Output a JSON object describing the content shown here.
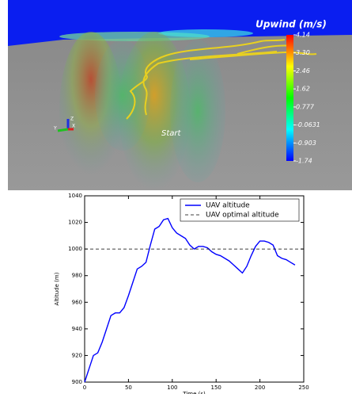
{
  "chart_data": [
    {
      "type": "scene",
      "title": "Upwind (m/s)",
      "annotation": "Start",
      "axis_labels": [
        "Z",
        "Y",
        "X"
      ],
      "colorbar": {
        "lim": [
          -1.74,
          4.14
        ],
        "colors": [
          "#0000ff",
          "#00ffff",
          "#00ff00",
          "#ffff00",
          "#ff0000"
        ],
        "ticks": [
          4.14,
          {
            "value": 3.3,
            "label": "3.30"
          },
          2.46,
          1.62,
          0.777,
          -0.0631,
          -0.903,
          -1.74
        ]
      }
    },
    {
      "type": "line",
      "xlabel": "Time (s)",
      "ylabel": "Altitude (m)",
      "x": [
        0,
        5,
        10,
        15,
        20,
        25,
        30,
        35,
        40,
        45,
        50,
        55,
        60,
        65,
        70,
        75,
        80,
        85,
        90,
        95,
        100,
        105,
        110,
        115,
        120,
        125,
        130,
        135,
        140,
        145,
        150,
        155,
        160,
        165,
        170,
        175,
        180,
        185,
        190,
        195,
        200,
        205,
        210,
        215,
        220,
        225,
        230,
        235,
        240
      ],
      "series": [
        {
          "name": "UAV altitude",
          "color": "#0000ff",
          "values": [
            900,
            910,
            920,
            922,
            930,
            940,
            950,
            952,
            952,
            956,
            965,
            975,
            985,
            987,
            990,
            1003,
            1015,
            1017,
            1022,
            1023,
            1016,
            1012,
            1010,
            1008,
            1003,
            1000,
            1002,
            1002,
            1001,
            998,
            996,
            995,
            993,
            991,
            988,
            985,
            982,
            987,
            995,
            1002,
            1006,
            1006,
            1005,
            1003,
            995,
            993,
            992,
            990,
            988
          ]
        },
        {
          "name": "UAV optimal altitude",
          "color": "#000000",
          "dashed": true,
          "x": [
            0,
            250
          ],
          "values": [
            1000,
            1000
          ]
        }
      ],
      "xlim": [
        0,
        250
      ],
      "ylim": [
        900,
        1040
      ],
      "xticks": [
        0,
        50,
        100,
        150,
        200,
        250
      ],
      "yticks": [
        900,
        920,
        940,
        960,
        980,
        1000,
        1020,
        1040
      ],
      "legend": "upper right"
    }
  ]
}
